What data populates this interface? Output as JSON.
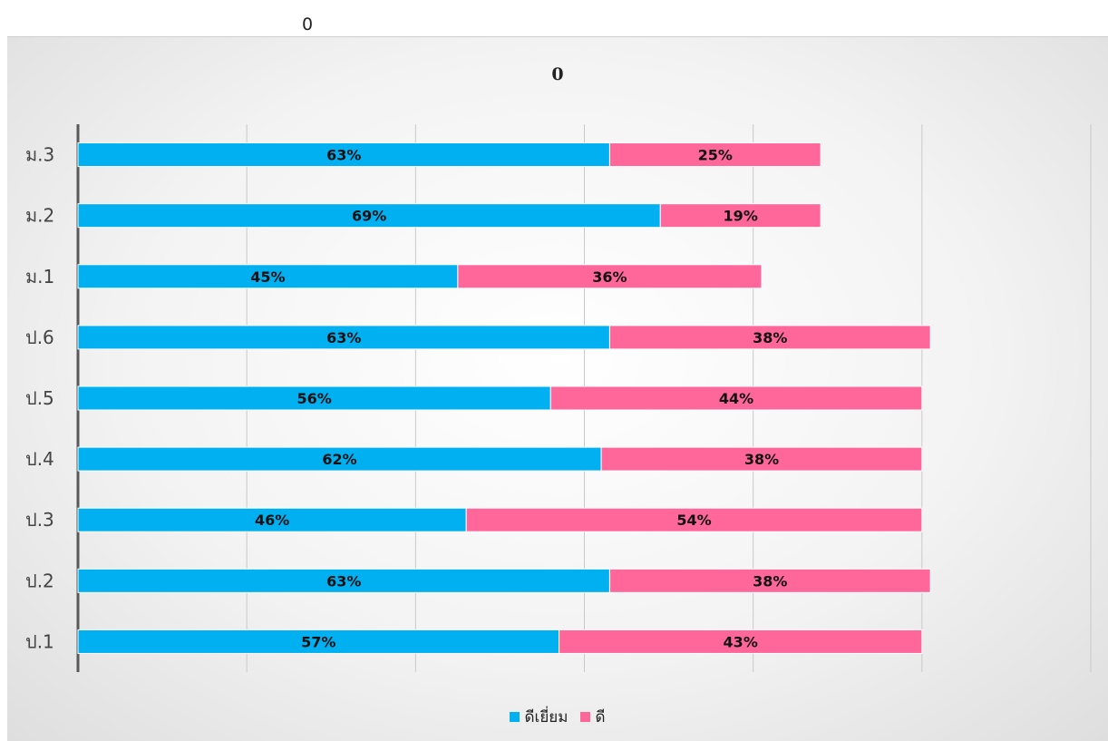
{
  "top_label": "0",
  "colors": {
    "excellent": "#00b0f0",
    "good": "#ff6699"
  },
  "chart_data": {
    "type": "bar",
    "orientation": "horizontal",
    "stacked": true,
    "title": "0",
    "categories": [
      "ม.3",
      "ม.2",
      "ม.1",
      "ป.6",
      "ป.5",
      "ป.4",
      "ป.3",
      "ป.2",
      "ป.1"
    ],
    "series": [
      {
        "name": "ดีเยี่ยม",
        "values": [
          63,
          69,
          45,
          63,
          56,
          62,
          46,
          63,
          57
        ],
        "labels": [
          "63%",
          "69%",
          "45%",
          "63%",
          "56%",
          "62%",
          "46%",
          "63%",
          "57%"
        ]
      },
      {
        "name": "ดี",
        "values": [
          25,
          19,
          36,
          38,
          44,
          38,
          54,
          38,
          43
        ],
        "labels": [
          "25%",
          "19%",
          "36%",
          "38%",
          "44%",
          "38%",
          "54%",
          "38%",
          "43%"
        ]
      }
    ],
    "xlim": [
      0,
      120
    ],
    "grid": true,
    "legend_position": "bottom"
  }
}
